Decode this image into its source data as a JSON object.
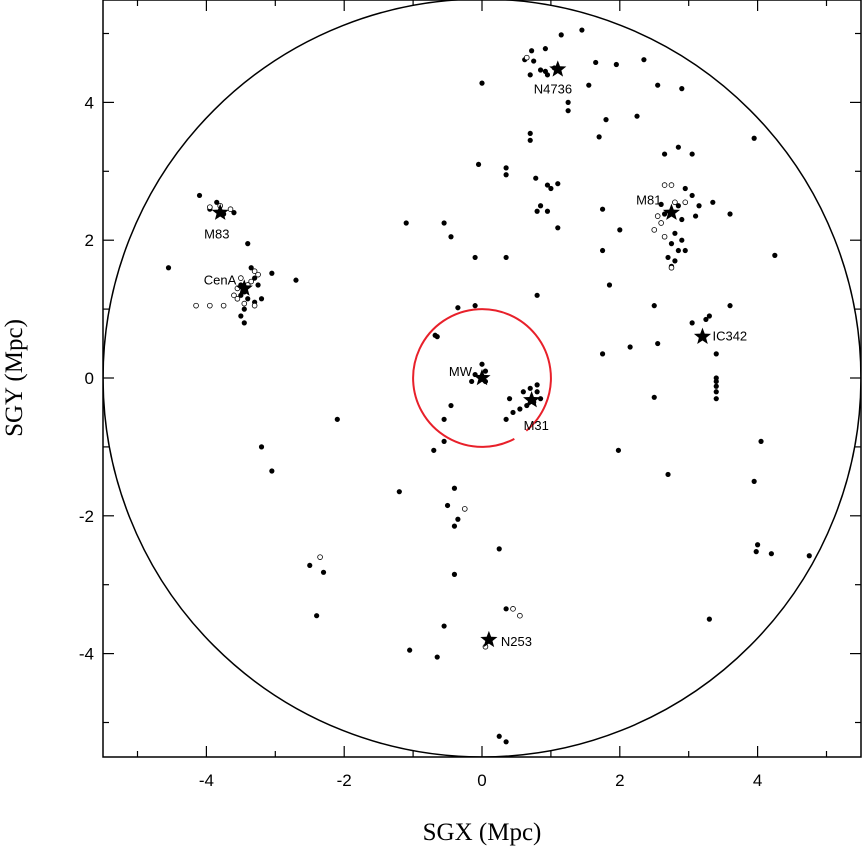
{
  "chart_data": {
    "type": "scatter",
    "xlabel": "SGX (Mpc)",
    "ylabel": "SGY (Mpc)",
    "xlim": [
      -5.5,
      5.5
    ],
    "ylim": [
      -5.5,
      5.4
    ],
    "xticks": [
      -4,
      -2,
      0,
      2,
      4
    ],
    "yticks": [
      -4,
      -2,
      0,
      2,
      4
    ],
    "xtick_labels": [
      "-4",
      "-2",
      "0",
      "2",
      "4"
    ],
    "ytick_labels": [
      "-4",
      "-2",
      "0",
      "2",
      "4"
    ],
    "grid": false,
    "colors": {
      "axes": "#000000",
      "outer_circle": "#000000",
      "inner_circle": "#e8202a"
    },
    "circles": [
      {
        "name": "outer",
        "cx": 0,
        "cy": 0,
        "r": 5.5
      },
      {
        "name": "inner",
        "cx": 0,
        "cy": 0,
        "r": 1.0
      }
    ],
    "filled_points": [
      [
        1.45,
        5.05
      ],
      [
        1.15,
        4.98
      ],
      [
        0.92,
        4.78
      ],
      [
        0.72,
        4.75
      ],
      [
        0.62,
        4.62
      ],
      [
        0.75,
        4.6
      ],
      [
        0.85,
        4.47
      ],
      [
        0.92,
        4.45
      ],
      [
        0.95,
        4.4
      ],
      [
        1.05,
        4.5
      ],
      [
        1.65,
        4.58
      ],
      [
        1.95,
        4.55
      ],
      [
        2.35,
        4.62
      ],
      [
        2.55,
        4.25
      ],
      [
        2.9,
        4.2
      ],
      [
        1.55,
        4.25
      ],
      [
        1.25,
        4.0
      ],
      [
        1.25,
        3.88
      ],
      [
        1.8,
        3.75
      ],
      [
        2.25,
        3.8
      ],
      [
        1.7,
        3.5
      ],
      [
        3.95,
        3.48
      ],
      [
        0.7,
        3.55
      ],
      [
        0.7,
        3.45
      ],
      [
        0.0,
        4.28
      ],
      [
        0.7,
        4.4
      ],
      [
        0.78,
        2.9
      ],
      [
        0.95,
        2.8
      ],
      [
        1.1,
        2.82
      ],
      [
        1.0,
        2.75
      ],
      [
        0.85,
        2.5
      ],
      [
        0.95,
        2.42
      ],
      [
        0.8,
        2.42
      ],
      [
        0.35,
        3.05
      ],
      [
        0.35,
        2.95
      ],
      [
        -0.05,
        3.1
      ],
      [
        1.1,
        2.18
      ],
      [
        1.75,
        2.45
      ],
      [
        2.0,
        2.15
      ],
      [
        3.05,
        3.25
      ],
      [
        2.65,
        3.25
      ],
      [
        2.85,
        3.35
      ],
      [
        2.95,
        2.75
      ],
      [
        3.05,
        2.65
      ],
      [
        3.15,
        2.5
      ],
      [
        2.6,
        2.52
      ],
      [
        2.65,
        2.38
      ],
      [
        2.85,
        2.5
      ],
      [
        2.9,
        2.3
      ],
      [
        3.1,
        2.35
      ],
      [
        2.8,
        2.1
      ],
      [
        2.9,
        2.0
      ],
      [
        2.75,
        1.95
      ],
      [
        2.85,
        1.85
      ],
      [
        2.95,
        1.85
      ],
      [
        2.8,
        1.7
      ],
      [
        2.7,
        1.75
      ],
      [
        2.75,
        1.62
      ],
      [
        3.35,
        2.55
      ],
      [
        3.6,
        2.38
      ],
      [
        4.25,
        1.78
      ],
      [
        1.75,
        1.85
      ],
      [
        1.85,
        1.35
      ],
      [
        2.5,
        1.05
      ],
      [
        3.05,
        0.8
      ],
      [
        3.3,
        0.9
      ],
      [
        3.25,
        0.85
      ],
      [
        3.6,
        1.05
      ],
      [
        2.55,
        0.5
      ],
      [
        2.15,
        0.45
      ],
      [
        1.75,
        0.35
      ],
      [
        3.4,
        0.35
      ],
      [
        3.4,
        0.0
      ],
      [
        3.4,
        -0.05
      ],
      [
        3.4,
        -0.12
      ],
      [
        3.4,
        -0.2
      ],
      [
        3.4,
        -0.3
      ],
      [
        2.5,
        -0.28
      ],
      [
        4.05,
        -0.92
      ],
      [
        1.98,
        -1.05
      ],
      [
        2.7,
        -1.4
      ],
      [
        3.95,
        -1.5
      ],
      [
        4.0,
        -2.42
      ],
      [
        3.98,
        -2.52
      ],
      [
        4.2,
        -2.55
      ],
      [
        4.75,
        -2.58
      ],
      [
        3.3,
        -3.5
      ],
      [
        -4.1,
        2.65
      ],
      [
        -3.85,
        2.55
      ],
      [
        -3.95,
        2.45
      ],
      [
        -3.8,
        2.42
      ],
      [
        -3.75,
        2.38
      ],
      [
        -3.6,
        2.4
      ],
      [
        -3.4,
        1.95
      ],
      [
        -3.35,
        1.6
      ],
      [
        -3.3,
        1.45
      ],
      [
        -3.25,
        1.35
      ],
      [
        -3.5,
        1.35
      ],
      [
        -3.5,
        1.2
      ],
      [
        -3.45,
        1.25
      ],
      [
        -3.4,
        1.15
      ],
      [
        -3.3,
        1.1
      ],
      [
        -3.2,
        1.15
      ],
      [
        -3.45,
        1.0
      ],
      [
        -3.5,
        0.9
      ],
      [
        -3.45,
        0.8
      ],
      [
        -3.05,
        1.52
      ],
      [
        -2.7,
        1.42
      ],
      [
        -4.55,
        1.6
      ],
      [
        -3.2,
        -1.0
      ],
      [
        -3.05,
        -1.35
      ],
      [
        -2.1,
        -0.6
      ],
      [
        -1.1,
        2.25
      ],
      [
        -0.55,
        2.25
      ],
      [
        -0.45,
        2.05
      ],
      [
        -0.1,
        1.75
      ],
      [
        0.35,
        1.75
      ],
      [
        0.8,
        1.2
      ],
      [
        -0.35,
        1.02
      ],
      [
        -0.1,
        1.05
      ],
      [
        -0.65,
        0.6
      ],
      [
        -0.68,
        0.62
      ],
      [
        0.0,
        0.2
      ],
      [
        -0.1,
        0.05
      ],
      [
        0.05,
        -0.05
      ],
      [
        -0.15,
        -0.05
      ],
      [
        0.05,
        0.1
      ],
      [
        0.6,
        -0.2
      ],
      [
        0.7,
        -0.15
      ],
      [
        0.8,
        -0.2
      ],
      [
        0.85,
        -0.3
      ],
      [
        0.75,
        -0.35
      ],
      [
        0.65,
        -0.4
      ],
      [
        0.55,
        -0.45
      ],
      [
        0.45,
        -0.5
      ],
      [
        0.35,
        -0.6
      ],
      [
        0.4,
        -0.3
      ],
      [
        0.8,
        -0.1
      ],
      [
        -0.45,
        -0.4
      ],
      [
        -0.55,
        -0.6
      ],
      [
        -0.55,
        -0.92
      ],
      [
        -0.7,
        -1.05
      ],
      [
        -1.2,
        -1.65
      ],
      [
        -0.4,
        -1.6
      ],
      [
        -0.5,
        -1.85
      ],
      [
        -0.35,
        -2.05
      ],
      [
        -0.4,
        -2.15
      ],
      [
        -0.4,
        -2.85
      ],
      [
        0.25,
        -2.48
      ],
      [
        -2.5,
        -2.72
      ],
      [
        -2.3,
        -2.82
      ],
      [
        -2.4,
        -3.45
      ],
      [
        0.35,
        -3.35
      ],
      [
        -0.55,
        -3.6
      ],
      [
        -1.05,
        -3.95
      ],
      [
        -0.65,
        -4.05
      ],
      [
        0.25,
        -5.2
      ],
      [
        0.35,
        -5.28
      ]
    ],
    "open_points": [
      [
        0.65,
        4.65
      ],
      [
        -3.95,
        2.48
      ],
      [
        -3.8,
        2.5
      ],
      [
        -3.65,
        2.45
      ],
      [
        -3.3,
        1.55
      ],
      [
        -3.25,
        1.5
      ],
      [
        -3.35,
        1.4
      ],
      [
        -3.5,
        1.45
      ],
      [
        -3.55,
        1.3
      ],
      [
        -3.6,
        1.2
      ],
      [
        -3.45,
        1.08
      ],
      [
        -3.3,
        1.05
      ],
      [
        -3.55,
        1.15
      ],
      [
        -3.4,
        1.35
      ],
      [
        -3.75,
        1.05
      ],
      [
        -3.95,
        1.05
      ],
      [
        -4.15,
        1.05
      ],
      [
        2.65,
        2.8
      ],
      [
        2.75,
        2.8
      ],
      [
        2.95,
        2.55
      ],
      [
        2.8,
        2.55
      ],
      [
        2.55,
        2.35
      ],
      [
        2.6,
        2.25
      ],
      [
        2.5,
        2.15
      ],
      [
        2.65,
        2.05
      ],
      [
        2.75,
        1.6
      ],
      [
        -0.25,
        -1.9
      ],
      [
        -2.35,
        -2.6
      ],
      [
        0.45,
        -3.35
      ],
      [
        0.55,
        -3.45
      ],
      [
        0.05,
        -3.9
      ]
    ],
    "stars": [
      {
        "label": "N4736",
        "x": 1.1,
        "y": 4.48
      },
      {
        "label": "M83",
        "x": -3.8,
        "y": 2.4
      },
      {
        "label": "M81",
        "x": 2.75,
        "y": 2.4
      },
      {
        "label": "CenA",
        "x": -3.45,
        "y": 1.3
      },
      {
        "label": "IC342",
        "x": 3.2,
        "y": 0.6
      },
      {
        "label": "MW",
        "x": 0.0,
        "y": 0.0
      },
      {
        "label": "M31",
        "x": 0.72,
        "y": -0.32
      },
      {
        "label": "N253",
        "x": 0.1,
        "y": -3.8
      }
    ]
  }
}
